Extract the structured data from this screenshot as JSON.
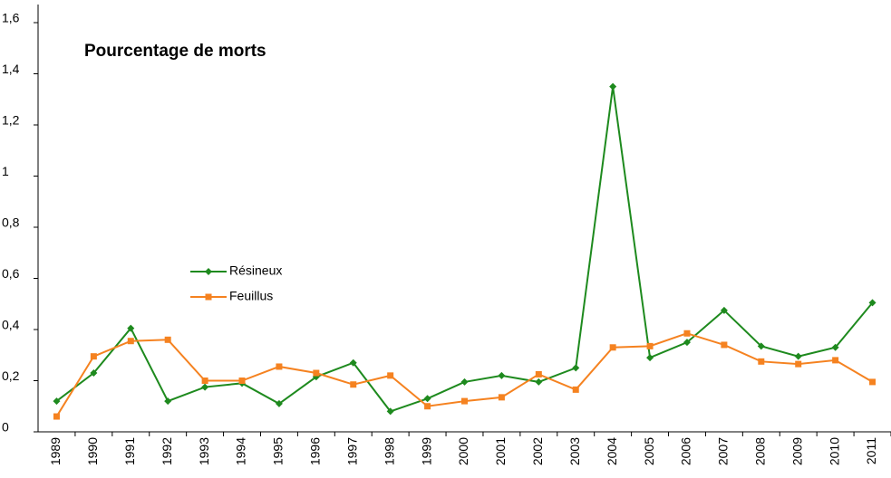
{
  "chart_data": {
    "type": "line",
    "title": "Pourcentage de morts",
    "categories": [
      "1989",
      "1990",
      "1991",
      "1992",
      "1993",
      "1994",
      "1995",
      "1996",
      "1997",
      "1998",
      "1999",
      "2000",
      "2001",
      "2002",
      "2003",
      "2004",
      "2005",
      "2006",
      "2007",
      "2008",
      "2009",
      "2010",
      "2011"
    ],
    "series": [
      {
        "name": "Résineux",
        "color": "#1e8a1e",
        "marker": "diamond",
        "values": [
          0.12,
          0.23,
          0.405,
          0.12,
          0.175,
          0.19,
          0.11,
          0.215,
          0.27,
          0.08,
          0.13,
          0.195,
          0.22,
          0.195,
          0.25,
          1.35,
          0.29,
          0.35,
          0.475,
          0.335,
          0.295,
          0.33,
          0.505
        ]
      },
      {
        "name": "Feuillus",
        "color": "#f58220",
        "marker": "square",
        "values": [
          0.06,
          0.295,
          0.355,
          0.36,
          0.2,
          0.2,
          0.255,
          0.23,
          0.185,
          0.22,
          0.1,
          0.12,
          0.135,
          0.225,
          0.165,
          0.33,
          0.335,
          0.385,
          0.34,
          0.275,
          0.265,
          0.28,
          0.195
        ]
      }
    ],
    "ylim": [
      0,
      1.6
    ],
    "yticks": [
      0,
      {
        "value": 0.2,
        "label": "0,2"
      },
      {
        "value": 0.4,
        "label": "0,4"
      },
      {
        "value": 0.6,
        "label": "0,6"
      },
      {
        "value": 0.8,
        "label": "0,8"
      },
      1,
      {
        "value": 1.2,
        "label": "1,2"
      },
      {
        "value": 1.4,
        "label": "1,4"
      },
      {
        "value": 1.6,
        "label": "1,6"
      }
    ],
    "grid": false
  }
}
